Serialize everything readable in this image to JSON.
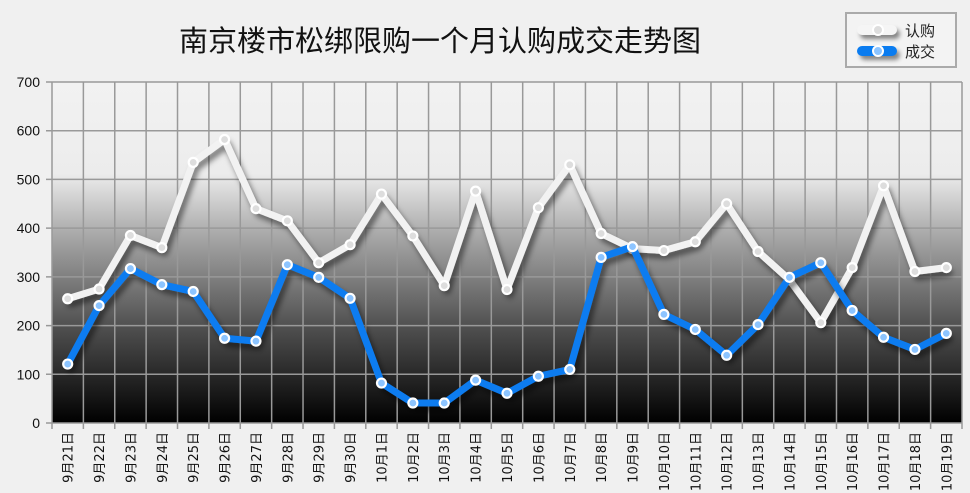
{
  "chart_data": {
    "type": "line",
    "title": "南京楼市松绑限购一个月认购成交走势图",
    "xlabel": "",
    "ylabel": "",
    "ylim": [
      0,
      700
    ],
    "yticks": [
      "0",
      "100",
      "200",
      "300",
      "400",
      "500",
      "600",
      "700"
    ],
    "grid": true,
    "legend_position": "top-right",
    "categories": [
      "9月21日",
      "9月22日",
      "9月23日",
      "9月24日",
      "9月25日",
      "9月26日",
      "9月27日",
      "9月28日",
      "9月29日",
      "9月30日",
      "10月1日",
      "10月2日",
      "10月3日",
      "10月4日",
      "10月5日",
      "10月6日",
      "10月7日",
      "10月8日",
      "10月9日",
      "10月10日",
      "10月11日",
      "10月12日",
      "10月13日",
      "10月14日",
      "10月15日",
      "10月16日",
      "10月17日",
      "10月18日",
      "10月19日"
    ],
    "series": [
      {
        "name": "认购",
        "color": "#f2f2f2",
        "values": [
          255,
          275,
          385,
          360,
          535,
          582,
          440,
          415,
          329,
          366,
          470,
          384,
          282,
          476,
          274,
          442,
          530,
          389,
          358,
          354,
          372,
          450,
          352,
          294,
          206,
          319,
          487,
          311,
          319
        ]
      },
      {
        "name": "成交",
        "color": "#0a7cf0",
        "values": [
          121,
          241,
          317,
          284,
          270,
          174,
          168,
          325,
          299,
          256,
          82,
          41,
          41,
          88,
          61,
          96,
          110,
          340,
          362,
          223,
          192,
          139,
          202,
          299,
          329,
          231,
          176,
          151,
          184
        ]
      }
    ]
  }
}
